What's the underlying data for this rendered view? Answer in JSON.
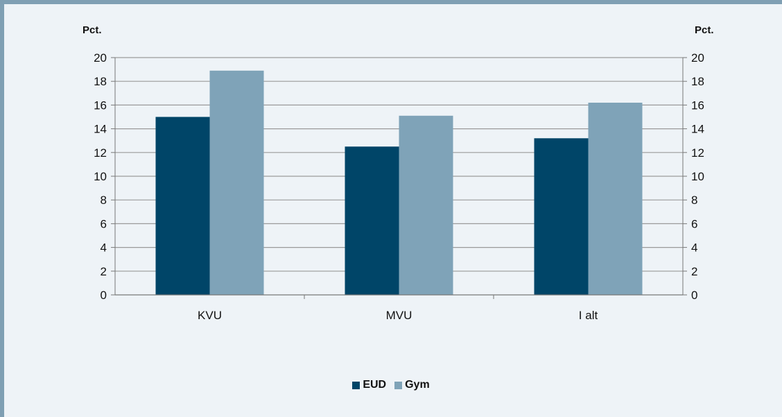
{
  "chart_data": {
    "type": "bar",
    "categories": [
      "KVU",
      "MVU",
      "I alt"
    ],
    "series": [
      {
        "name": "EUD",
        "values": [
          15.0,
          12.5,
          13.2
        ],
        "color": "#004568"
      },
      {
        "name": "Gym",
        "values": [
          18.9,
          15.1,
          16.2
        ],
        "color": "#7fa3b8"
      }
    ],
    "ylabel_left": "Pct.",
    "ylabel_right": "Pct.",
    "ylim": [
      0,
      20
    ],
    "yticks": [
      0,
      2,
      4,
      6,
      8,
      10,
      12,
      14,
      16,
      18,
      20
    ],
    "grid": true,
    "legend_position": "bottom"
  }
}
